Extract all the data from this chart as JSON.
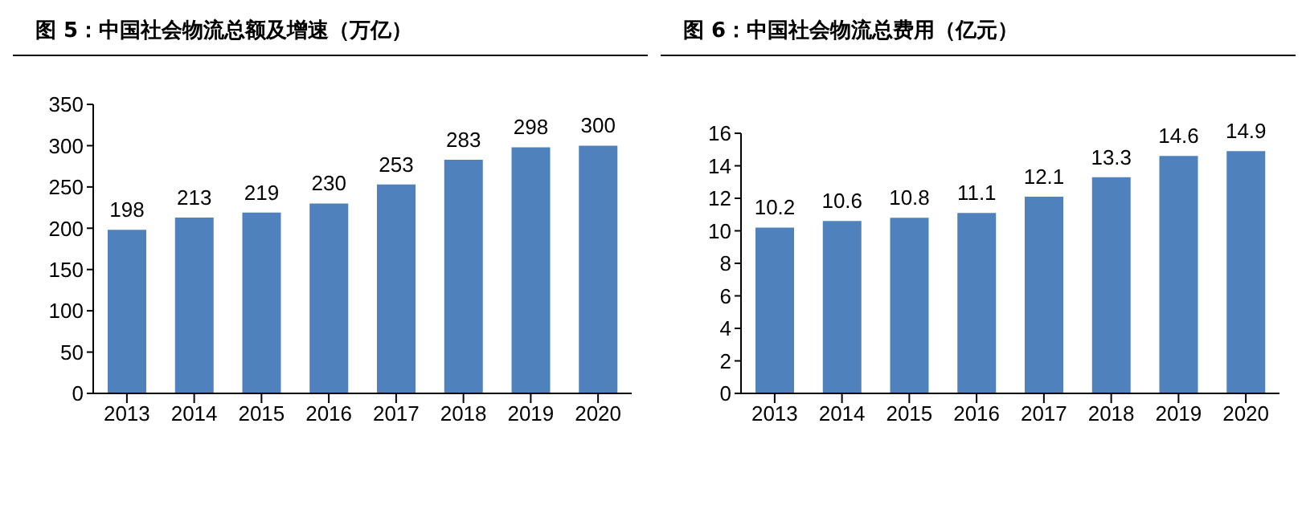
{
  "chart_data": [
    {
      "type": "bar",
      "title": "图 5：中国社会物流总额及增速（万亿）",
      "categories": [
        "2013",
        "2014",
        "2015",
        "2016",
        "2017",
        "2018",
        "2019",
        "2020"
      ],
      "values": [
        198,
        213,
        219,
        230,
        253,
        283,
        298,
        300
      ],
      "color": "#4f81bd",
      "ylim": [
        0,
        350
      ],
      "yticks": [
        0,
        50,
        100,
        150,
        200,
        250,
        300,
        350
      ],
      "grid": false,
      "data_labels": true
    },
    {
      "type": "bar",
      "title": "图 6：中国社会物流总费用（亿元）",
      "categories": [
        "2013",
        "2014",
        "2015",
        "2016",
        "2017",
        "2018",
        "2019",
        "2020"
      ],
      "values": [
        10.2,
        10.6,
        10.8,
        11.1,
        12.1,
        13.3,
        14.6,
        14.9
      ],
      "color": "#4f81bd",
      "ylim": [
        0,
        16
      ],
      "yticks": [
        0,
        2,
        4,
        6,
        8,
        10,
        12,
        14,
        16
      ],
      "grid": false,
      "data_labels": true
    }
  ]
}
